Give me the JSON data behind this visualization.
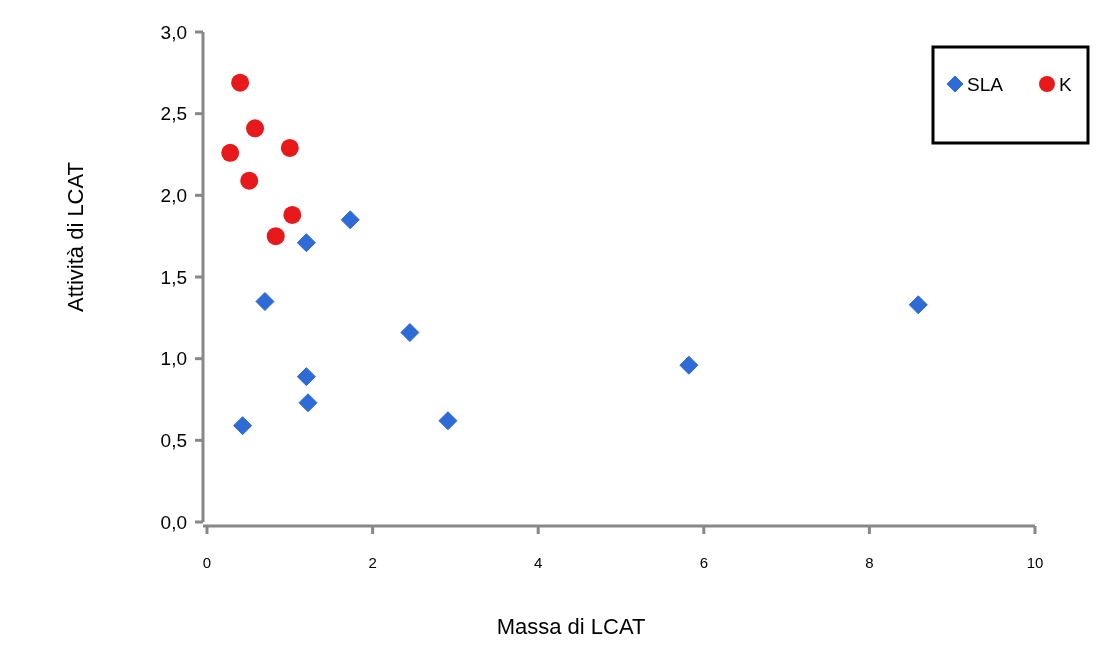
{
  "chart_data": {
    "type": "scatter",
    "xlabel": "Massa di LCAT",
    "ylabel": "Attività di LCAT",
    "xlim": [
      0,
      10
    ],
    "xticks": [
      0,
      2,
      4,
      6,
      8,
      10
    ],
    "ylim": [
      0,
      3
    ],
    "yticks": [
      {
        "value": 0,
        "label": "0,0"
      },
      {
        "value": 0.5,
        "label": "0,5"
      },
      {
        "value": 1,
        "label": "1,0"
      },
      {
        "value": 1.5,
        "label": "1,5"
      },
      {
        "value": 2,
        "label": "2,0"
      },
      {
        "value": 2.5,
        "label": "2,5"
      },
      {
        "value": 3,
        "label": "3,0"
      }
    ],
    "legend": "top right",
    "grid": false,
    "series": [
      {
        "name": "SLA",
        "color": "#2e6bd6",
        "marker": "diamond",
        "x": [
          1.73,
          1.2,
          0.7,
          2.45,
          1.2,
          1.22,
          0.43,
          2.91,
          5.82,
          8.59
        ],
        "values": [
          1.85,
          1.71,
          1.35,
          1.16,
          0.89,
          0.73,
          0.59,
          0.62,
          0.96,
          1.33
        ]
      },
      {
        "name": "K",
        "color": "#e8191b",
        "marker": "circle",
        "x": [
          0.4,
          0.58,
          0.28,
          1.0,
          0.51,
          1.03,
          0.83
        ],
        "values": [
          2.69,
          2.41,
          2.26,
          2.29,
          2.09,
          1.88,
          1.75
        ]
      }
    ]
  }
}
